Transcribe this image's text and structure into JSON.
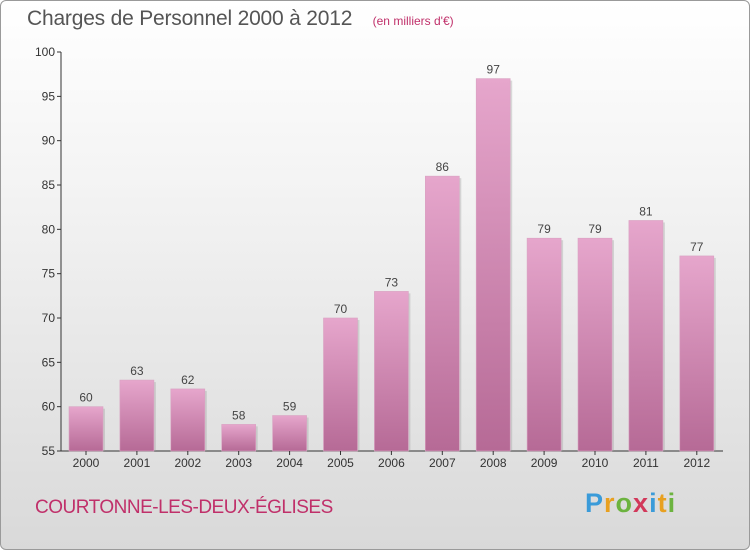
{
  "title": "Charges de Personnel 2000 à 2012",
  "unit_note": "(en milliers d'€)",
  "commune": "COURTONNE-LES-DEUX-ÉGLISES",
  "brand": {
    "letters": [
      {
        "ch": "P",
        "color": "#3a9bd9"
      },
      {
        "ch": "r",
        "color": "#e8a020"
      },
      {
        "ch": "o",
        "color": "#6cb33f"
      },
      {
        "ch": "x",
        "color": "#d2385a"
      },
      {
        "ch": "i",
        "color": "#3a9bd9"
      },
      {
        "ch": "t",
        "color": "#e8a020"
      },
      {
        "ch": "i",
        "color": "#6cb33f"
      }
    ]
  },
  "colors": {
    "bar_top": "#e6a6cc",
    "bar_bottom": "#b66a96",
    "title": "#555555",
    "accent": "#c0306a"
  },
  "chart_data": {
    "type": "bar",
    "title": "Charges de Personnel 2000 à 2012",
    "subtitle": "(en milliers d'€)",
    "xlabel": "",
    "ylabel": "",
    "categories": [
      "2000",
      "2001",
      "2002",
      "2003",
      "2004",
      "2005",
      "2006",
      "2007",
      "2008",
      "2009",
      "2010",
      "2011",
      "2012"
    ],
    "values": [
      60,
      63,
      62,
      58,
      59,
      70,
      73,
      86,
      97,
      79,
      79,
      81,
      77
    ],
    "ylim": [
      55,
      100
    ],
    "yticks": [
      55,
      60,
      65,
      70,
      75,
      80,
      85,
      90,
      95,
      100
    ],
    "grid": false,
    "legend": "none"
  }
}
